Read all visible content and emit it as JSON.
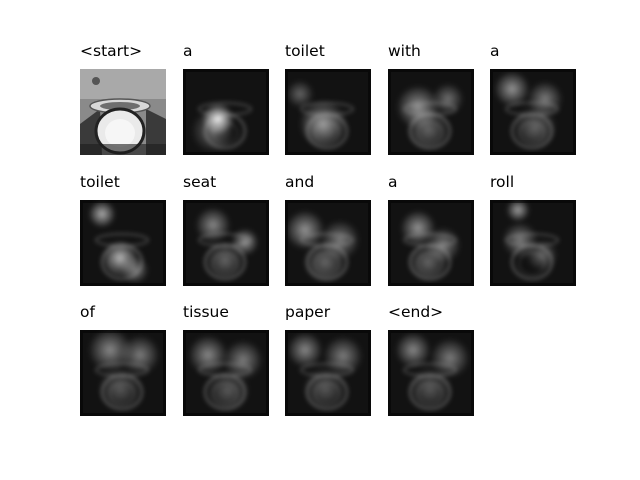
{
  "words": [
    "<start>",
    "a",
    "toilet",
    "with",
    "a",
    "toilet",
    "seat",
    "and",
    "a",
    "roll",
    "of",
    "tissue",
    "paper",
    "<end>"
  ],
  "image_kind": [
    "photo",
    "attention",
    "attention",
    "attention",
    "attention",
    "attention",
    "attention",
    "attention",
    "attention",
    "attention",
    "attention",
    "attention",
    "attention",
    "attention"
  ]
}
